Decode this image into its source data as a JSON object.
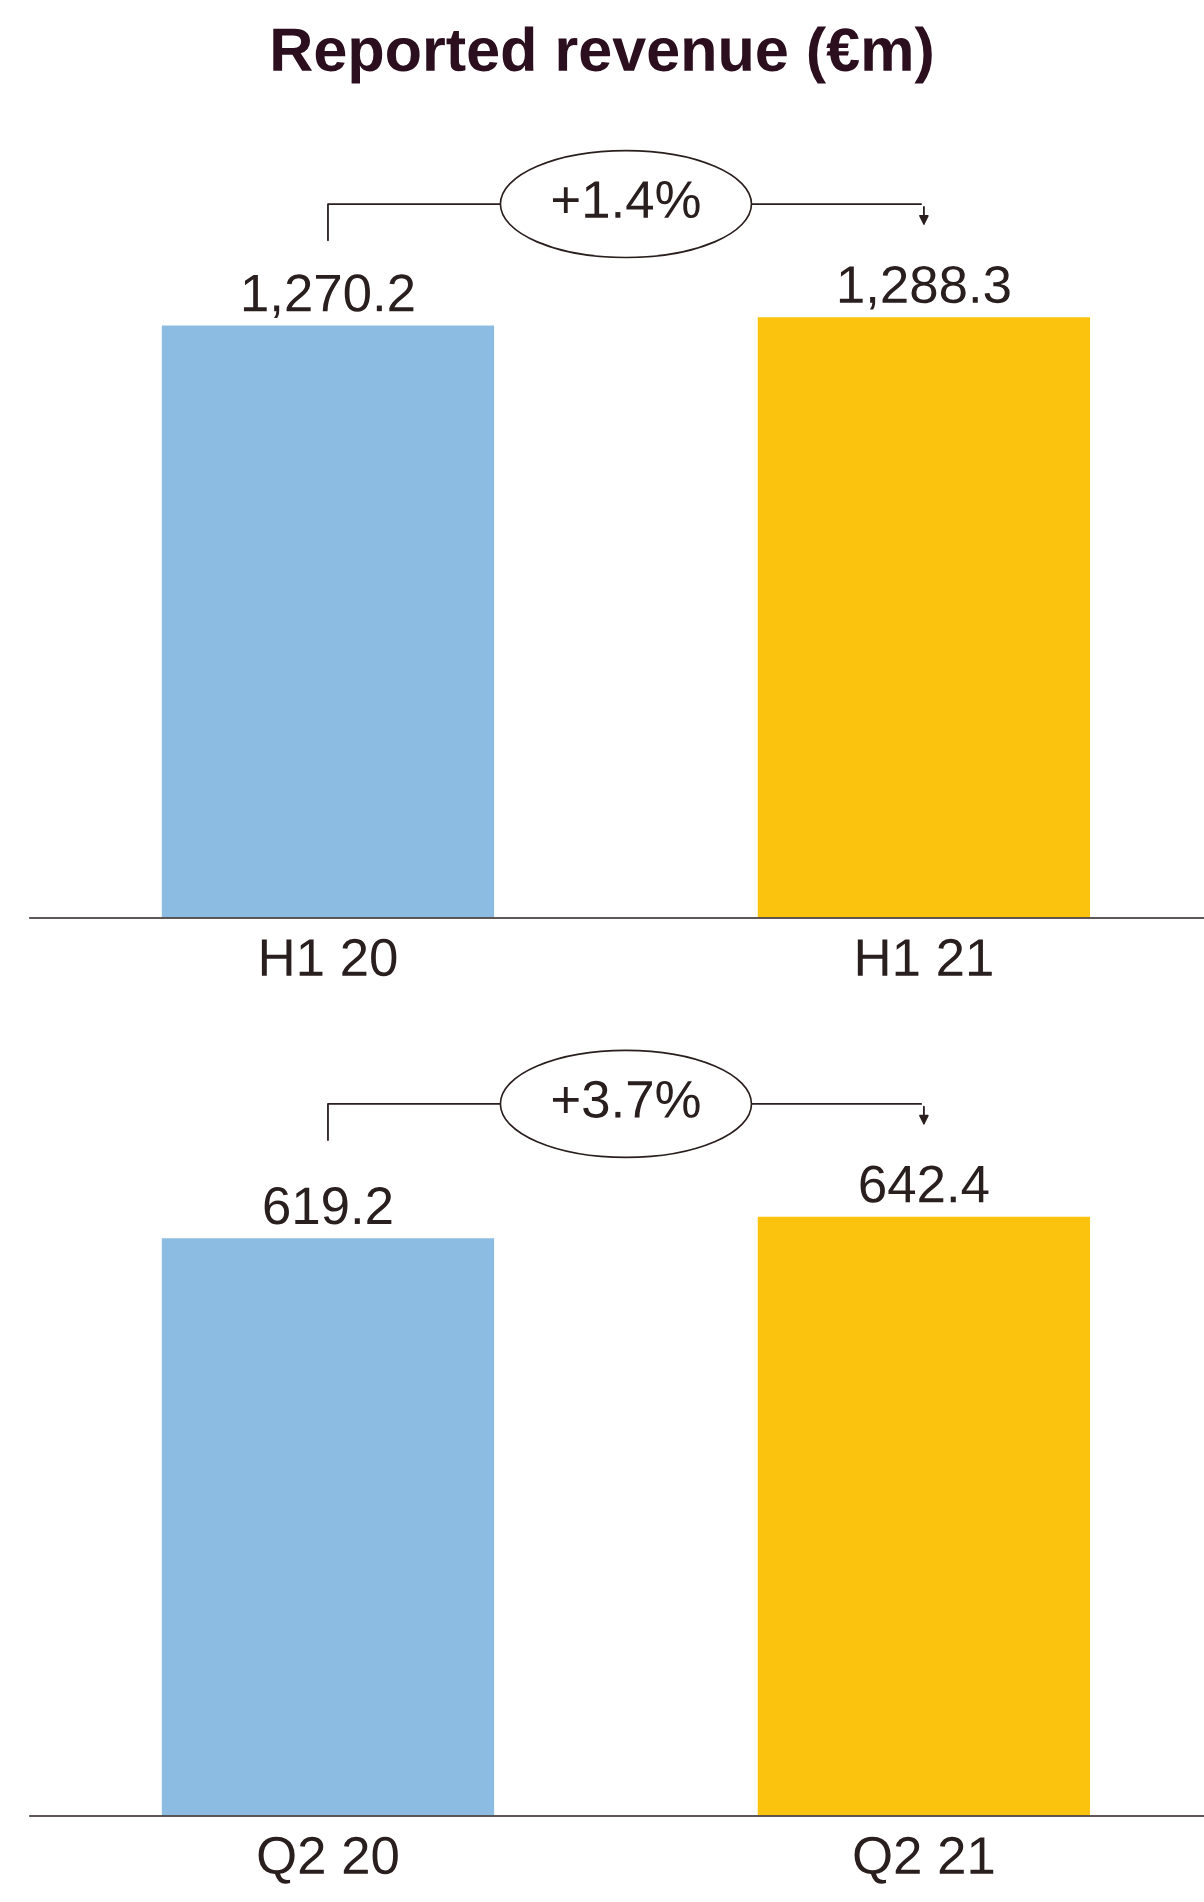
{
  "chart_data": [
    {
      "type": "bar",
      "title": "Reported revenue (€m)",
      "categories": [
        "H1 20",
        "H1 21"
      ],
      "values": [
        1270.2,
        1288.3
      ],
      "colors": [
        "#8dbce2",
        "#fcc30e"
      ],
      "value_labels": [
        "1,270.2",
        "1,288.3"
      ],
      "annotations": [
        "+1.4%"
      ],
      "grid": false,
      "legend": false
    },
    {
      "type": "bar",
      "categories": [
        "Q2 20",
        "Q2 21"
      ],
      "values": [
        619.2,
        642.4
      ],
      "colors": [
        "#8dbce2",
        "#fcc30e"
      ],
      "value_labels": [
        "619.2",
        "642.4"
      ],
      "annotations": [
        "+3.7%"
      ],
      "grid": false,
      "legend": false
    }
  ]
}
